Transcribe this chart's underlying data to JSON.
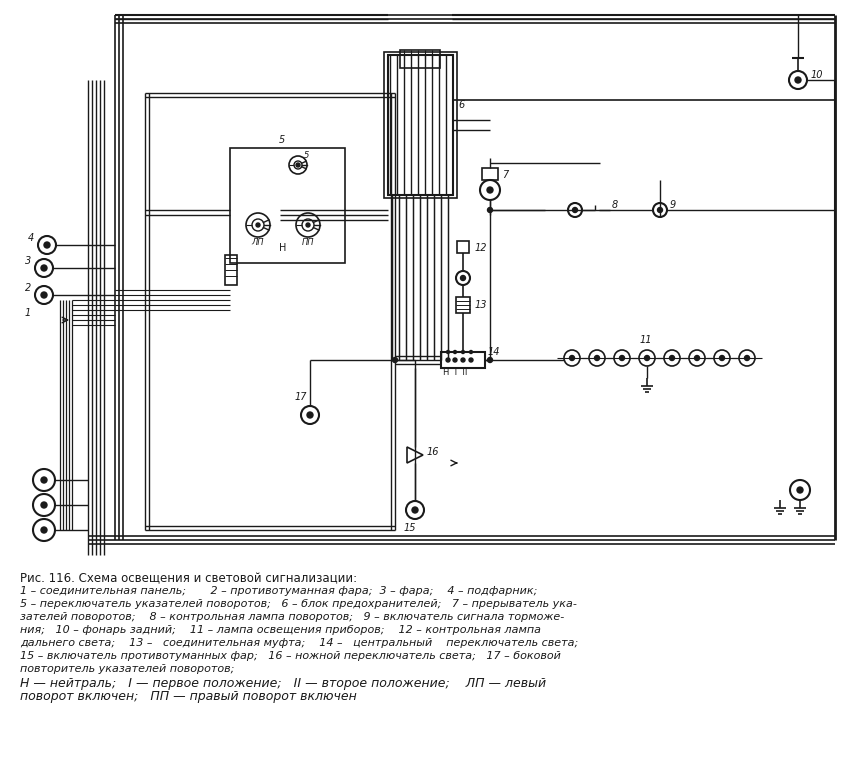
{
  "bg_color": "#ffffff",
  "line_color": "#1a1a1a",
  "title": "Рис. 116. Схема освещения и световой сигнализации:",
  "cap1": "1 – соединительная панель;       2 – противотуманная фара;  3 – фара;    4 – подфарник;",
  "cap2": "5 – переключатель указателей поворотов;   6 – блок предохранителей;   7 – прерыватель ука-",
  "cap3": "зателей поворотов;    8 – контрольная лампа поворотов;   9 – включатель сигнала торможе-",
  "cap4": "ния;   10 – фонарь задний;    11 – лампа освещения приборов;    12 – контрольная лампа",
  "cap5": "дальнего света;    13 –   соединительная муфта;    14 –   центральный    переключатель света;",
  "cap6": "15 – включатель противотуманных фар;   16 – ножной переключатель света;   17 – боковой",
  "cap7": "повторитель указателей поворотов;",
  "cap8": "Н — нейтраль;   I — первое положение;   II — второе положение;    ЛП — левый",
  "cap9": "поворот включен;   ПП — правый поворот включен"
}
